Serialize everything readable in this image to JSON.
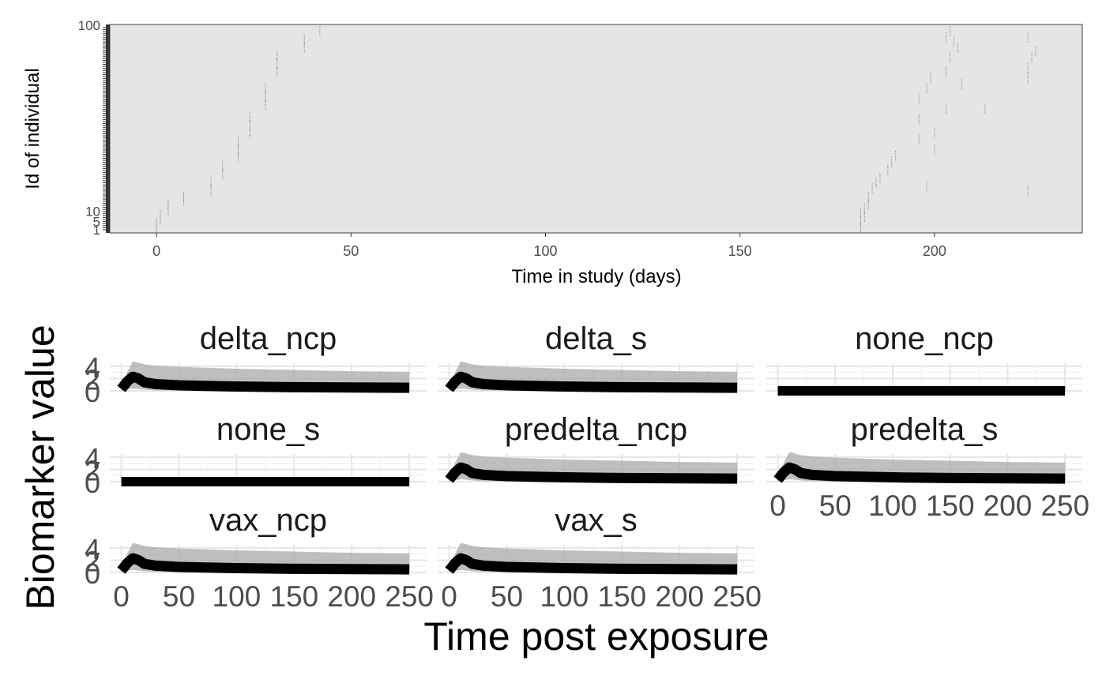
{
  "chart_data": [
    {
      "type": "scatter",
      "title": "",
      "xlabel": "Time in study (days)",
      "ylabel": "Id of individual",
      "xlim": [
        -12,
        238
      ],
      "ylim": [
        1,
        100
      ],
      "x_ticks": [
        "0",
        "50",
        "100",
        "150",
        "200"
      ],
      "x_tick_values": [
        0,
        50,
        100,
        150,
        200
      ],
      "y_ticks_visible_top": "100",
      "y_ticks_visible_bottom": [
        "10",
        "5",
        "1"
      ],
      "panel_background": "#e5e5e5",
      "grid": false,
      "points": [
        {
          "x": 0,
          "y": 2
        },
        {
          "x": 0,
          "y": 4
        },
        {
          "x": 1,
          "y": 6
        },
        {
          "x": 1,
          "y": 8
        },
        {
          "x": 3,
          "y": 10
        },
        {
          "x": 3,
          "y": 13
        },
        {
          "x": 7,
          "y": 15
        },
        {
          "x": 7,
          "y": 17
        },
        {
          "x": 14,
          "y": 20
        },
        {
          "x": 14,
          "y": 24
        },
        {
          "x": 17,
          "y": 28
        },
        {
          "x": 17,
          "y": 32
        },
        {
          "x": 21,
          "y": 36
        },
        {
          "x": 21,
          "y": 40
        },
        {
          "x": 21,
          "y": 44
        },
        {
          "x": 24,
          "y": 48
        },
        {
          "x": 24,
          "y": 52
        },
        {
          "x": 24,
          "y": 56
        },
        {
          "x": 28,
          "y": 62
        },
        {
          "x": 28,
          "y": 66
        },
        {
          "x": 28,
          "y": 70
        },
        {
          "x": 31,
          "y": 78
        },
        {
          "x": 31,
          "y": 82
        },
        {
          "x": 31,
          "y": 86
        },
        {
          "x": 38,
          "y": 90
        },
        {
          "x": 38,
          "y": 94
        },
        {
          "x": 42,
          "y": 98
        },
        {
          "x": 181,
          "y": 2
        },
        {
          "x": 181,
          "y": 5
        },
        {
          "x": 181,
          "y": 9
        },
        {
          "x": 182,
          "y": 7
        },
        {
          "x": 182,
          "y": 11
        },
        {
          "x": 183,
          "y": 13
        },
        {
          "x": 183,
          "y": 17
        },
        {
          "x": 184,
          "y": 21
        },
        {
          "x": 185,
          "y": 24
        },
        {
          "x": 186,
          "y": 26
        },
        {
          "x": 188,
          "y": 30
        },
        {
          "x": 189,
          "y": 34
        },
        {
          "x": 190,
          "y": 37
        },
        {
          "x": 196,
          "y": 45
        },
        {
          "x": 196,
          "y": 55
        },
        {
          "x": 196,
          "y": 65
        },
        {
          "x": 198,
          "y": 70
        },
        {
          "x": 199,
          "y": 75
        },
        {
          "x": 200,
          "y": 40
        },
        {
          "x": 200,
          "y": 48
        },
        {
          "x": 203,
          "y": 60
        },
        {
          "x": 203,
          "y": 78
        },
        {
          "x": 203,
          "y": 95
        },
        {
          "x": 204,
          "y": 98
        },
        {
          "x": 204,
          "y": 85
        },
        {
          "x": 205,
          "y": 93
        },
        {
          "x": 206,
          "y": 90
        },
        {
          "x": 207,
          "y": 72
        },
        {
          "x": 213,
          "y": 60
        },
        {
          "x": 198,
          "y": 22
        },
        {
          "x": 224,
          "y": 20
        },
        {
          "x": 224,
          "y": 75
        },
        {
          "x": 224,
          "y": 80
        },
        {
          "x": 224,
          "y": 95
        },
        {
          "x": 225,
          "y": 85
        },
        {
          "x": 226,
          "y": 88
        }
      ]
    },
    {
      "type": "area",
      "xlabel": "Time post exposure",
      "ylabel": "Biomarker value",
      "xlim": [
        -10,
        265
      ],
      "ylim": [
        0,
        4.5
      ],
      "x_ticks": [
        "0",
        "50",
        "100",
        "150",
        "200",
        "250"
      ],
      "x_tick_values": [
        0,
        50,
        100,
        150,
        200,
        250
      ],
      "y_ticks": [
        "0",
        "2",
        "4"
      ],
      "y_tick_values": [
        0,
        2,
        4
      ],
      "panel_background": "#ffffff",
      "grid": true,
      "facets": [
        {
          "label": "delta_ncp",
          "kind": "peak"
        },
        {
          "label": "delta_s",
          "kind": "peak"
        },
        {
          "label": "none_ncp",
          "kind": "flat"
        },
        {
          "label": "none_s",
          "kind": "flat"
        },
        {
          "label": "predelta_ncp",
          "kind": "peak"
        },
        {
          "label": "predelta_s",
          "kind": "peak"
        },
        {
          "label": "vax_ncp",
          "kind": "peak"
        },
        {
          "label": "vax_s",
          "kind": "peak"
        }
      ],
      "series": [
        {
          "name": "",
          "style": "median",
          "x": [
            0,
            5,
            10,
            15,
            20,
            30,
            50,
            100,
            150,
            200,
            250
          ],
          "values": [
            0.3,
            1.5,
            2.3,
            2.0,
            1.4,
            1.1,
            0.9,
            0.7,
            0.6,
            0.55,
            0.5
          ]
        },
        {
          "name": "",
          "style": "ribbon_upper",
          "x": [
            0,
            5,
            10,
            15,
            20,
            30,
            50,
            100,
            150,
            200,
            250
          ],
          "values": [
            0.8,
            3.0,
            4.8,
            4.6,
            4.3,
            4.1,
            3.9,
            3.6,
            3.4,
            3.2,
            3.1
          ]
        },
        {
          "name": "",
          "style": "ribbon_lower",
          "x": [
            0,
            5,
            10,
            15,
            20,
            30,
            50,
            100,
            150,
            200,
            250
          ],
          "values": [
            0,
            0.2,
            0.4,
            0.3,
            0.2,
            0.1,
            0.05,
            0,
            0,
            0,
            0
          ]
        }
      ]
    }
  ]
}
